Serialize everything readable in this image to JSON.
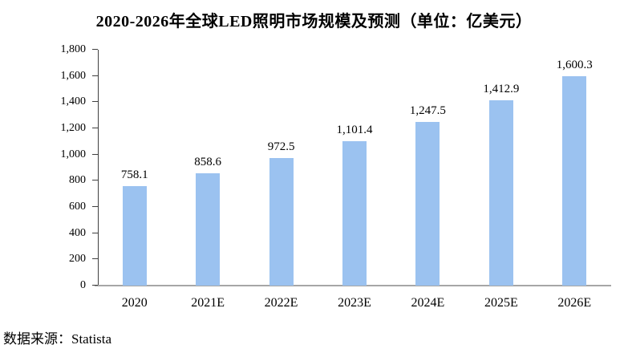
{
  "page": {
    "source_note": "数据来源：Statista"
  },
  "chart_data": {
    "type": "bar",
    "title": "2020-2026年全球LED照明市场规模及预测（单位：亿美元）",
    "categories": [
      "2020",
      "2021E",
      "2022E",
      "2023E",
      "2024E",
      "2025E",
      "2026E"
    ],
    "values": [
      758.1,
      858.6,
      972.5,
      1101.4,
      1247.5,
      1412.9,
      1600.3
    ],
    "value_labels": [
      "758.1",
      "858.6",
      "972.5",
      "1,101.4",
      "1,247.5",
      "1,412.9",
      "1,600.3"
    ],
    "xlabel": "",
    "ylabel": "",
    "ylim": [
      0,
      1800
    ],
    "ytick_interval": 200,
    "ytick_labels": [
      "0",
      "200",
      "400",
      "600",
      "800",
      "1,000",
      "1,200",
      "1,400",
      "1,600",
      "1,800"
    ],
    "grid": false,
    "legend": null,
    "bar_color": "#9bc2f0",
    "axis_color": "#404040",
    "baseline_color": "#a6a6a6",
    "label_color": "#000000"
  }
}
